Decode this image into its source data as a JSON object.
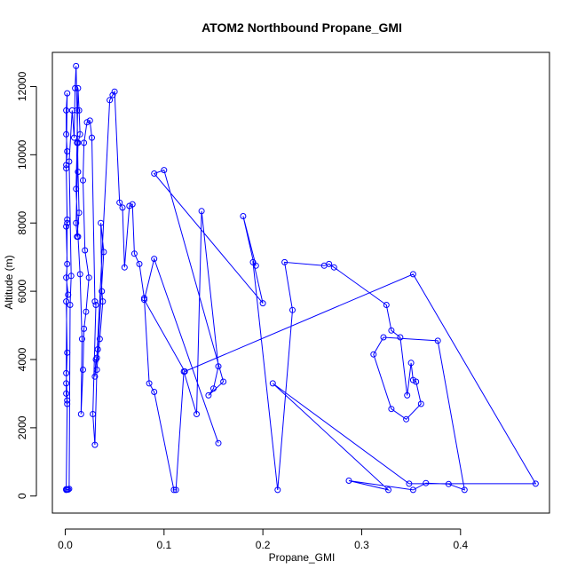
{
  "chart_data": {
    "type": "line",
    "title": "ATOM2 Northbound Propane_GMI",
    "xlabel": "Propane_GMI",
    "ylabel": "Altitude (m)",
    "xlim": [
      -0.013,
      0.49
    ],
    "ylim": [
      -500,
      13000
    ],
    "x_ticks": [
      0.0,
      0.1,
      0.2,
      0.3,
      0.4
    ],
    "x_tick_labels": [
      "0.0",
      "0.1",
      "0.2",
      "0.3",
      "0.4"
    ],
    "y_ticks": [
      0,
      2000,
      4000,
      6000,
      8000,
      10000,
      12000
    ],
    "y_tick_labels": [
      "0",
      "2000",
      "4000",
      "6000",
      "8000",
      "10000",
      "12000"
    ],
    "grid": false,
    "legend": "none",
    "series_color": "#0000ff",
    "series": [
      {
        "x": [
          0.001,
          0.002,
          0.001,
          0.001,
          0.002,
          0.001,
          0.003,
          0.001,
          0.002,
          0.001,
          0.002,
          0.001,
          0.002,
          0.001,
          0.001,
          0.002,
          0.001,
          0.002,
          0.001,
          0.002,
          0.001,
          0.002,
          0.003,
          0.004,
          0.005,
          0.006,
          0.004,
          0.007,
          0.009,
          0.01,
          0.011,
          0.012,
          0.013,
          0.014,
          0.012,
          0.011,
          0.013,
          0.015,
          0.014,
          0.013,
          0.012,
          0.011,
          0.013,
          0.015,
          0.017,
          0.016,
          0.018,
          0.019,
          0.021,
          0.024,
          0.02,
          0.018,
          0.019,
          0.022,
          0.025,
          0.027,
          0.03,
          0.031,
          0.028,
          0.03,
          0.032,
          0.035,
          0.038,
          0.037,
          0.036,
          0.039,
          0.033,
          0.03,
          0.031,
          0.032,
          0.045,
          0.048,
          0.05,
          0.055,
          0.058,
          0.06,
          0.065,
          0.068,
          0.07,
          0.075,
          0.08,
          0.085,
          0.09,
          0.11,
          0.112,
          0.12,
          0.133,
          0.138,
          0.155,
          0.15,
          0.145,
          0.16,
          0.1,
          0.09,
          0.2,
          0.18,
          0.193,
          0.19,
          0.215,
          0.23,
          0.222,
          0.262,
          0.267,
          0.272,
          0.325,
          0.33,
          0.339,
          0.346,
          0.35,
          0.352,
          0.355,
          0.36,
          0.345,
          0.33,
          0.312,
          0.322,
          0.377,
          0.404,
          0.388,
          0.365,
          0.352,
          0.287,
          0.327,
          0.21,
          0.348,
          0.476,
          0.352,
          0.121,
          0.08,
          0.09,
          0.155
        ],
        "y": [
          180,
          2700,
          3000,
          3300,
          4200,
          5700,
          5900,
          6400,
          6800,
          7900,
          8000,
          9700,
          10100,
          10600,
          11300,
          11800,
          9600,
          8100,
          3600,
          2800,
          200,
          190,
          190,
          210,
          5600,
          6450,
          9800,
          11300,
          10500,
          11950,
          12600,
          11300,
          9500,
          8300,
          7600,
          8000,
          10350,
          10600,
          11300,
          11950,
          10350,
          9000,
          7600,
          6500,
          4600,
          2400,
          3700,
          4900,
          5400,
          6400,
          7200,
          9250,
          10350,
          10950,
          11000,
          10500,
          5700,
          5600,
          2400,
          1500,
          3700,
          4600,
          5700,
          6000,
          8000,
          7150,
          4300,
          3500,
          4000,
          4050,
          11600,
          11750,
          11850,
          8600,
          8450,
          6700,
          8500,
          8550,
          7100,
          6800,
          5800,
          3300,
          3050,
          180,
          180,
          3650,
          2400,
          8350,
          3800,
          3150,
          2950,
          3350,
          9550,
          9450,
          5650,
          8200,
          6750,
          6850,
          180,
          5450,
          6850,
          6750,
          6800,
          6700,
          5600,
          4850,
          4650,
          2950,
          3900,
          3400,
          3350,
          2700,
          2250,
          2550,
          4150,
          4650,
          4550,
          180,
          350,
          380,
          180,
          450,
          180,
          3300,
          360,
          360,
          6500,
          3650,
          5750,
          6950,
          1550
        ]
      }
    ]
  }
}
